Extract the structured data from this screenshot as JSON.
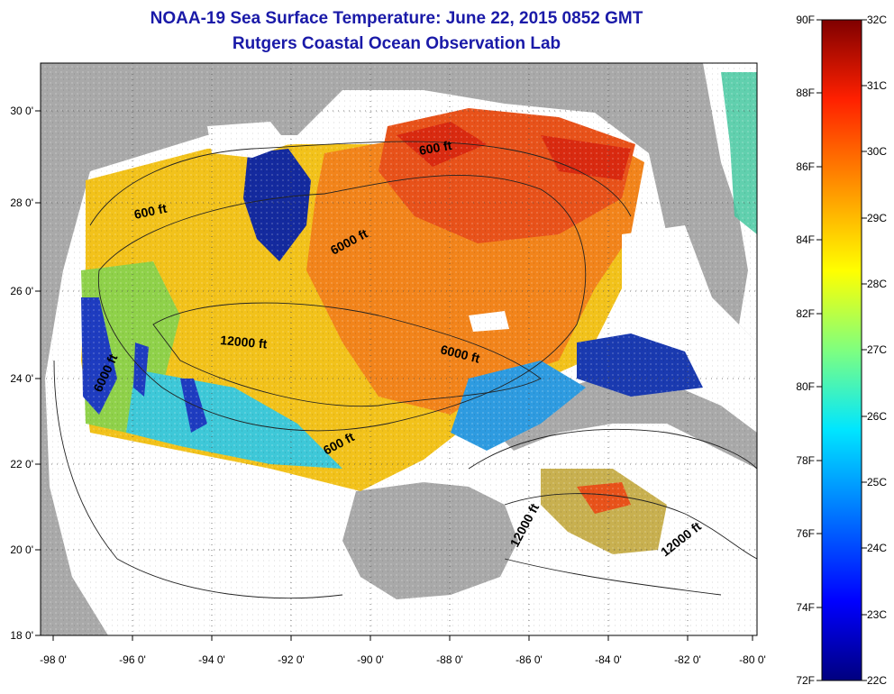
{
  "title": {
    "line1": "NOAA-19 Sea Surface Temperature:  June 22, 2015 0852 GMT",
    "line2": "Rutgers Coastal Ocean Observation Lab"
  },
  "map": {
    "lat_ticks": [
      "30 0'",
      "28 0'",
      "26 0'",
      "24 0'",
      "22 0'",
      "20 0'",
      "18 0'"
    ],
    "lon_ticks": [
      "-98 0'",
      "-96 0'",
      "-94 0'",
      "-92 0'",
      "-90 0'",
      "-88 0'",
      "-86 0'",
      "-84 0'",
      "-82 0'",
      "-80 0'"
    ],
    "contour_labels": [
      "600 ft",
      "600 ft",
      "6000 ft",
      "12000 ft",
      "6000 ft",
      "6000 ft",
      "600 ft",
      "12000 ft",
      "12000 ft"
    ]
  },
  "colorbar": {
    "f_labels": [
      "90F",
      "88F",
      "86F",
      "84F",
      "82F",
      "80F",
      "78F",
      "76F",
      "74F",
      "72F"
    ],
    "c_labels": [
      "32C",
      "31C",
      "30C",
      "29C",
      "28C",
      "27C",
      "26C",
      "25C",
      "24C",
      "23C",
      "22C"
    ]
  },
  "colors": {
    "title": "#1a1aa8",
    "land": "#a9a9a9",
    "nodata": "#ffffff",
    "warm": "#f26a1b",
    "hot": "#e63515",
    "mid": "#f2c21b",
    "cool": "#2e9be0",
    "cold": "#142a9e"
  }
}
